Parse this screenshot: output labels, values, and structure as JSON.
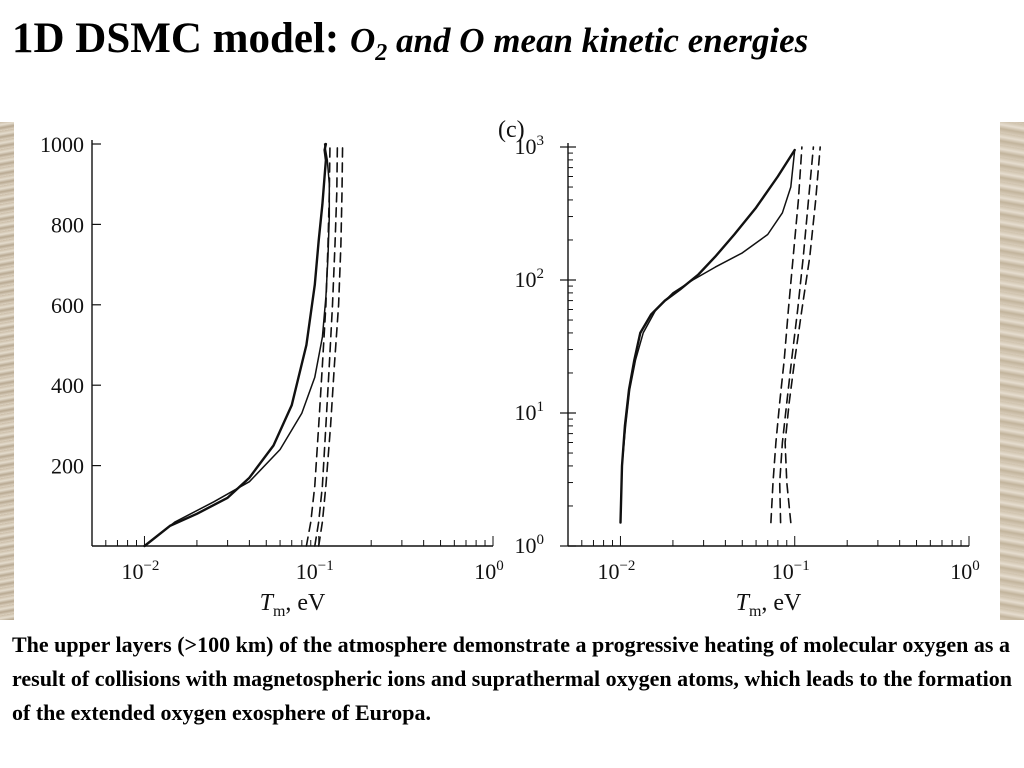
{
  "slide": {
    "title_main": "1D DSMC model: ",
    "title_species_a": "O",
    "title_species_a_sub": "2",
    "title_rest": " and O mean kinetic energies",
    "caption": "The upper layers (>100 km) of the atmosphere demonstrate a progressive heating of molecular oxygen as a result of collisions with magnetospheric ions and suprathermal oxygen atoms, which leads to the formation of the extended oxygen exosphere of Europa."
  },
  "colors": {
    "line": "#111111",
    "background": "#ffffff"
  },
  "chart_data": [
    {
      "type": "line",
      "panel_label": "",
      "x_scale": "log",
      "y_scale": "linear",
      "xlim": [
        0.005,
        1
      ],
      "ylim": [
        0,
        1000
      ],
      "x_ticks": [
        0.01,
        0.1,
        1
      ],
      "x_tick_labels": [
        "10",
        "10",
        "10"
      ],
      "x_tick_exponents": [
        "−2",
        "−1",
        "0"
      ],
      "y_ticks": [
        200,
        400,
        600,
        800,
        1000
      ],
      "y_tick_labels": [
        "200",
        "400",
        "600",
        "800",
        "1000"
      ],
      "xlabel": "T",
      "xlabel_sub": "m",
      "xlabel_unit": ", eV",
      "ylabel": "",
      "grid": false,
      "series": [
        {
          "style": "solid-thick",
          "x": [
            0.01,
            0.014,
            0.02,
            0.03,
            0.04,
            0.055,
            0.07,
            0.085,
            0.095,
            0.1,
            0.105,
            0.108,
            0.11,
            0.108,
            0.11
          ],
          "y": [
            0,
            50,
            80,
            120,
            170,
            250,
            350,
            500,
            650,
            760,
            850,
            920,
            960,
            985,
            1000
          ]
        },
        {
          "style": "solid-thin",
          "x": [
            0.01,
            0.015,
            0.025,
            0.04,
            0.06,
            0.08,
            0.095,
            0.105,
            0.11,
            0.113,
            0.115,
            0.115,
            0.112,
            0.108
          ],
          "y": [
            0,
            60,
            110,
            160,
            240,
            330,
            420,
            520,
            620,
            720,
            820,
            900,
            960,
            1000
          ]
        },
        {
          "style": "dashed",
          "x": [
            0.085,
            0.09,
            0.095,
            0.1,
            0.105,
            0.11,
            0.113,
            0.115,
            0.116
          ],
          "y": [
            0,
            60,
            150,
            300,
            450,
            600,
            750,
            880,
            1000
          ]
        },
        {
          "style": "dashed",
          "x": [
            0.095,
            0.1,
            0.105,
            0.11,
            0.115,
            0.12,
            0.124,
            0.127,
            0.128
          ],
          "y": [
            0,
            60,
            150,
            300,
            450,
            600,
            750,
            880,
            1000
          ]
        },
        {
          "style": "dashed",
          "x": [
            0.1,
            0.105,
            0.11,
            0.117,
            0.123,
            0.13,
            0.134,
            0.136,
            0.137
          ],
          "y": [
            0,
            60,
            150,
            300,
            450,
            600,
            750,
            880,
            1000
          ]
        }
      ]
    },
    {
      "type": "line",
      "panel_label": "(c)",
      "x_scale": "log",
      "y_scale": "log",
      "xlim": [
        0.005,
        1
      ],
      "ylim": [
        1,
        1000
      ],
      "x_ticks": [
        0.01,
        0.1,
        1
      ],
      "x_tick_labels": [
        "10",
        "10",
        "10"
      ],
      "x_tick_exponents": [
        "−2",
        "−1",
        "0"
      ],
      "y_ticks": [
        1,
        10,
        100,
        1000
      ],
      "y_tick_labels": [
        "10",
        "10",
        "10",
        "10"
      ],
      "y_tick_exponents": [
        "0",
        "1",
        "2",
        "3"
      ],
      "xlabel": "T",
      "xlabel_sub": "m",
      "xlabel_unit": ", eV",
      "ylabel": "",
      "grid": false,
      "series": [
        {
          "style": "solid-thick",
          "x": [
            0.01,
            0.0102,
            0.0106,
            0.0112,
            0.012,
            0.013,
            0.015,
            0.018,
            0.022,
            0.028,
            0.035,
            0.045,
            0.06,
            0.08,
            0.1
          ],
          "y": [
            1.5,
            4,
            8,
            15,
            25,
            40,
            55,
            70,
            85,
            110,
            150,
            220,
            350,
            600,
            950
          ]
        },
        {
          "style": "solid-thin",
          "x": [
            0.01,
            0.0102,
            0.0107,
            0.0113,
            0.0122,
            0.0135,
            0.016,
            0.02,
            0.026,
            0.035,
            0.05,
            0.07,
            0.085,
            0.095,
            0.1
          ],
          "y": [
            1.5,
            4,
            8,
            15,
            25,
            40,
            60,
            80,
            100,
            125,
            160,
            220,
            320,
            500,
            950
          ]
        },
        {
          "style": "dashed",
          "x": [
            0.073,
            0.075,
            0.078,
            0.082,
            0.087,
            0.092,
            0.098,
            0.105,
            0.11
          ],
          "y": [
            1.5,
            3,
            6,
            12,
            25,
            60,
            150,
            400,
            1000
          ]
        },
        {
          "style": "dashed",
          "x": [
            0.083,
            0.082,
            0.085,
            0.09,
            0.096,
            0.104,
            0.112,
            0.12,
            0.128
          ],
          "y": [
            1.5,
            3,
            6,
            12,
            25,
            60,
            150,
            400,
            1000
          ]
        },
        {
          "style": "dashed",
          "x": [
            0.095,
            0.09,
            0.088,
            0.093,
            0.1,
            0.11,
            0.122,
            0.132,
            0.14
          ],
          "y": [
            1.5,
            3,
            6,
            12,
            25,
            60,
            150,
            400,
            1000
          ]
        }
      ]
    }
  ]
}
